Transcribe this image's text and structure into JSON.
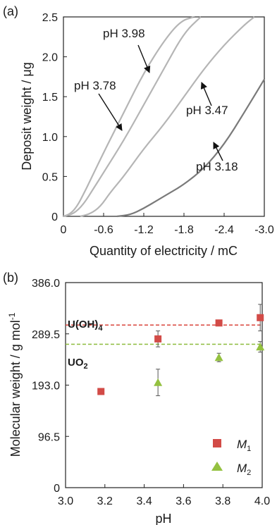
{
  "chart_data": [
    {
      "type": "line",
      "panel_label": "(a)",
      "xlabel": "Quantity of electricity  / mC",
      "ylabel": "Deposit weight / μg",
      "xlim": [
        0,
        -3.0
      ],
      "ylim": [
        0,
        2.5
      ],
      "x_ticks": [
        0,
        -0.6,
        -1.2,
        -1.8,
        -2.4,
        -3.0
      ],
      "x_tick_labels": [
        "0",
        "-0.6",
        "-1.2",
        "-1.8",
        "-2.4",
        "-3.0"
      ],
      "y_ticks": [
        0,
        0.5,
        1.0,
        1.5,
        2.0,
        2.5
      ],
      "y_tick_labels": [
        "0",
        "0.5",
        "1.0",
        "1.5",
        "2.0",
        "2.5"
      ],
      "grid": false,
      "series": [
        {
          "name": "pH 3.98",
          "color": "#b5b5b5",
          "x": [
            0,
            -0.1,
            -0.2,
            -0.3,
            -0.4,
            -0.6,
            -0.9,
            -1.2,
            -1.5,
            -1.75,
            -1.95
          ],
          "y": [
            0,
            0.03,
            0.12,
            0.28,
            0.45,
            0.8,
            1.3,
            1.8,
            2.2,
            2.45,
            2.5
          ]
        },
        {
          "name": "pH 3.78",
          "color": "#b5b5b5",
          "x": [
            0,
            -0.15,
            -0.3,
            -0.45,
            -0.6,
            -0.9,
            -1.2,
            -1.5,
            -1.8,
            -2.05
          ],
          "y": [
            0,
            0.03,
            0.15,
            0.35,
            0.55,
            0.95,
            1.4,
            1.85,
            2.3,
            2.5
          ]
        },
        {
          "name": "pH 3.47",
          "color": "#b5b5b5",
          "x": [
            -0.25,
            -0.4,
            -0.55,
            -0.7,
            -0.9,
            -1.2,
            -1.5,
            -1.8,
            -2.1,
            -2.4,
            -2.7,
            -2.85
          ],
          "y": [
            0,
            0.03,
            0.12,
            0.3,
            0.5,
            0.85,
            1.15,
            1.5,
            1.85,
            2.15,
            2.4,
            2.5
          ]
        },
        {
          "name": "pH 3.18",
          "color": "#7a7a7a",
          "x": [
            -0.8,
            -1.0,
            -1.2,
            -1.4,
            -1.6,
            -1.8,
            -2.1,
            -2.4,
            -2.7,
            -3.0
          ],
          "y": [
            0,
            0.02,
            0.1,
            0.2,
            0.3,
            0.4,
            0.6,
            0.9,
            1.3,
            1.72
          ]
        }
      ]
    },
    {
      "type": "scatter",
      "panel_label": "(b)",
      "xlabel": "pH",
      "ylabel": "Molecular weight / g mol",
      "ylabel_sup": "-1",
      "xlim": [
        3.0,
        4.0
      ],
      "ylim": [
        0,
        386
      ],
      "x_ticks": [
        3.0,
        3.2,
        3.4,
        3.6,
        3.8,
        4.0
      ],
      "x_tick_labels": [
        "3.0",
        "3.2",
        "3.4",
        "3.6",
        "3.8",
        "4.0"
      ],
      "y_ticks": [
        0,
        96.5,
        193.0,
        289.5,
        386.0
      ],
      "y_tick_labels": [
        "0",
        "96.5",
        "193.0",
        "289.5",
        "386.0"
      ],
      "grid": false,
      "legend_position": "bottom-right",
      "reference_lines": [
        {
          "label": "U(OH)",
          "sub": "4",
          "y": 306,
          "color": "#d9443c"
        },
        {
          "label": "UO",
          "sub": "2",
          "y": 270,
          "color": "#8cbc3c"
        }
      ],
      "series": [
        {
          "name": "M",
          "sub": "1",
          "marker": "square",
          "color": "#d24b47",
          "x": [
            3.18,
            3.47,
            3.78,
            3.99
          ],
          "y": [
            181,
            280,
            310,
            320
          ],
          "err": [
            5,
            15,
            5,
            25
          ]
        },
        {
          "name": "M",
          "sub": "2",
          "marker": "triangle",
          "color": "#94c140",
          "x": [
            3.47,
            3.78,
            3.99
          ],
          "y": [
            198,
            245,
            265
          ],
          "err": [
            25,
            8,
            10
          ]
        }
      ]
    }
  ]
}
